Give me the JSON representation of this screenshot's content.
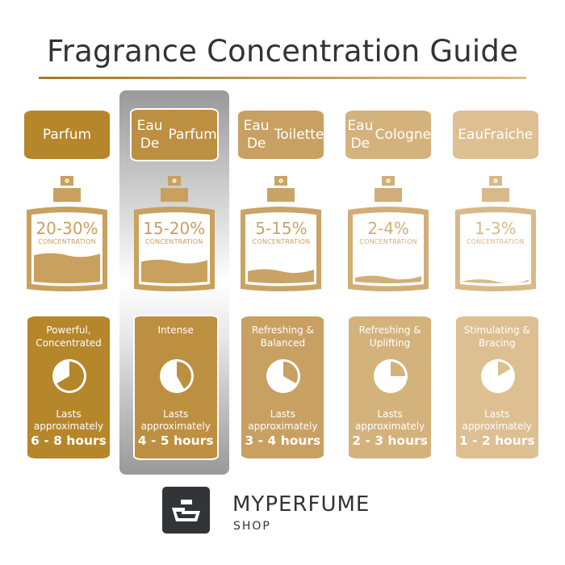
{
  "title": "Fragrance Concentration Guide",
  "highlighted_column": 1,
  "concentration_label": "CONCENTRATION",
  "lasts_label": [
    "Lasts",
    "approximately"
  ],
  "types": [
    {
      "name": [
        "Parfum"
      ],
      "concentration": "20-30%",
      "description": [
        "Powerful,",
        "Concentrated"
      ],
      "duration": "6 - 8 hours",
      "clock_hours": 8,
      "liquid_level": 0.42,
      "color": "#B5862A",
      "bottle_color": "#C9A05E"
    },
    {
      "name": [
        "Eau De",
        "Parfum"
      ],
      "concentration": "15-20%",
      "description": [
        "Intense"
      ],
      "duration": "4 - 5 hours",
      "clock_hours": 5,
      "liquid_level": 0.33,
      "color": "#BD8F41",
      "bottle_color": "#C9A05E"
    },
    {
      "name": [
        "Eau De",
        "Toilette"
      ],
      "concentration": "5-15%",
      "description": [
        "Refreshing &",
        "Balanced"
      ],
      "duration": "3 - 4 hours",
      "clock_hours": 4,
      "liquid_level": 0.2,
      "color": "#C8A062",
      "bottle_color": "#C9A466"
    },
    {
      "name": [
        "Eau De",
        "Cologne"
      ],
      "concentration": "2-4%",
      "description": [
        "Refreshing &",
        "Uplifting"
      ],
      "duration": "2 - 3 hours",
      "clock_hours": 3,
      "liquid_level": 0.11,
      "color": "#D4B27B",
      "bottle_color": "#D1AE78"
    },
    {
      "name": [
        "Eau",
        "Fraiche"
      ],
      "concentration": "1-3%",
      "description": [
        "Stimulating &",
        "Bracing"
      ],
      "duration": "1 - 2 hours",
      "clock_hours": 2,
      "liquid_level": 0.06,
      "color": "#DDBF91",
      "bottle_color": "#D8B988"
    }
  ],
  "logo": {
    "brand": "MYPERFUME",
    "sub": "SHOP"
  }
}
